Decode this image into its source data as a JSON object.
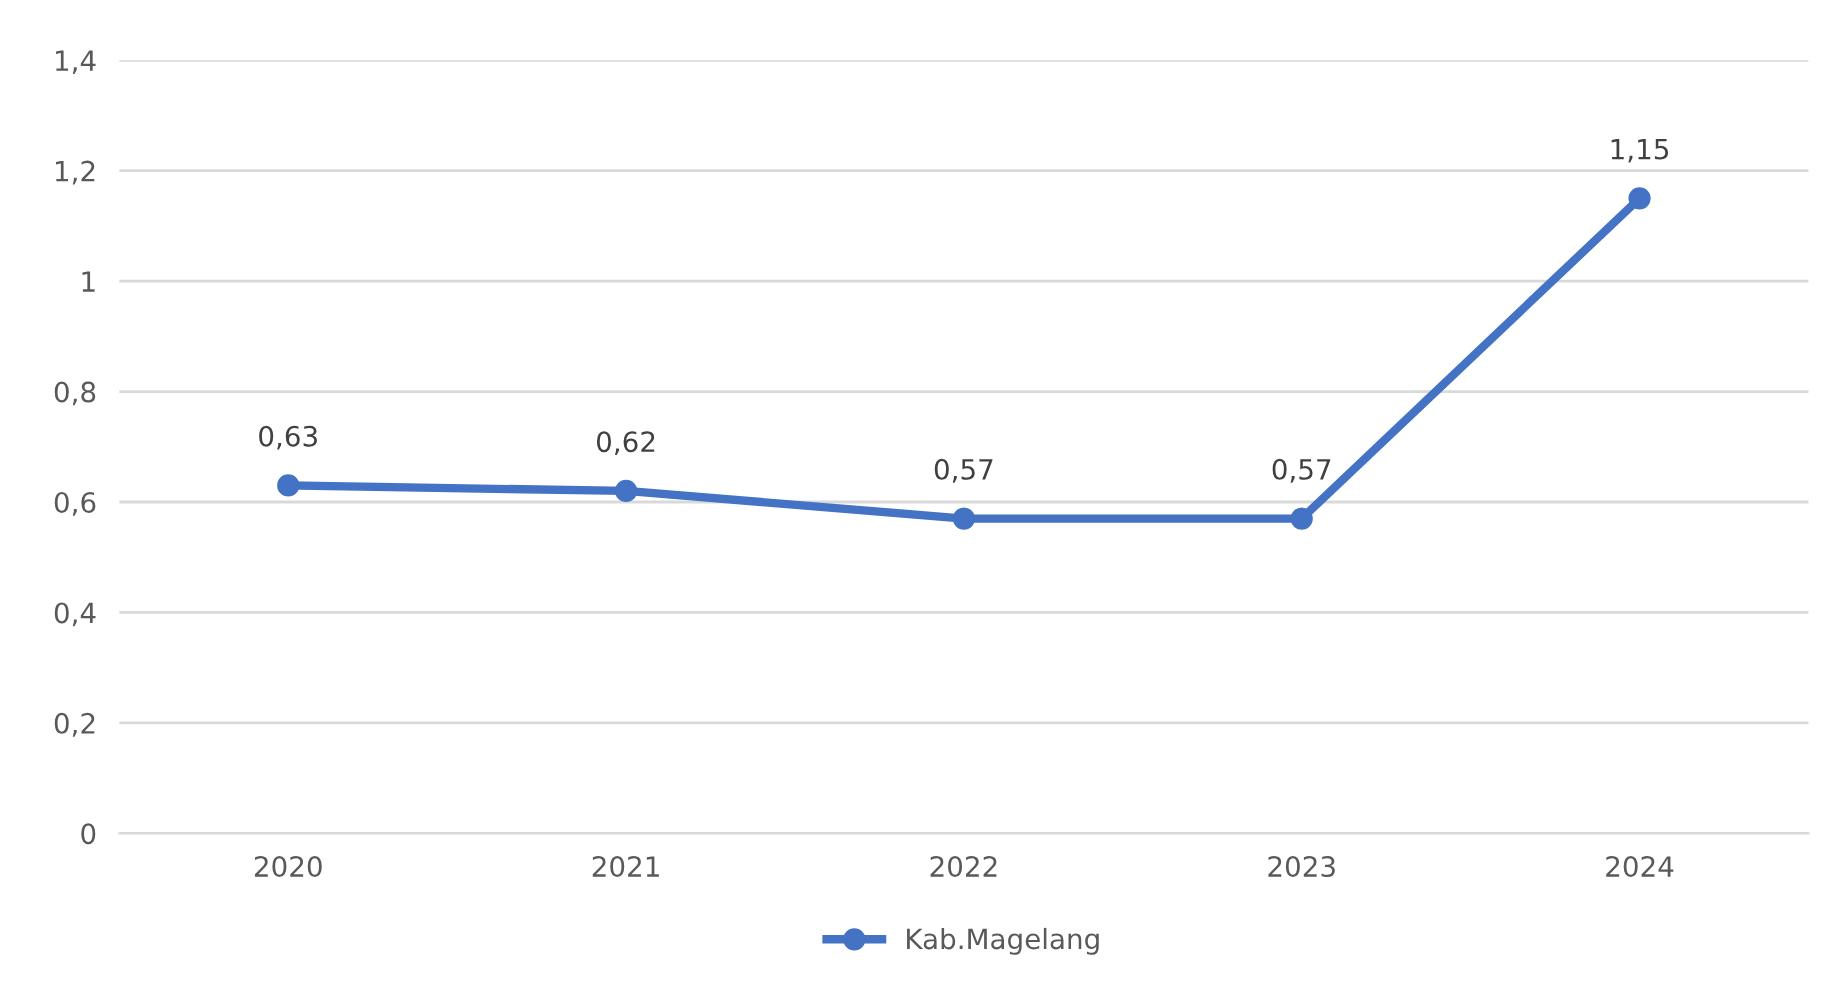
{
  "chart_data": {
    "type": "line",
    "categories": [
      "2020",
      "2021",
      "2022",
      "2023",
      "2024"
    ],
    "series": [
      {
        "name": "Kab.Magelang",
        "color": "#4472c4",
        "values": [
          0.63,
          0.62,
          0.57,
          0.57,
          1.15
        ],
        "value_labels": [
          "0,63",
          "0,62",
          "0,57",
          "0,57",
          "1,15"
        ]
      }
    ],
    "ylim": [
      0,
      1.4
    ],
    "yticks": [
      0,
      {
        "value": 0.2,
        "label": "0,2"
      },
      {
        "value": 0.4,
        "label": "0,4"
      },
      {
        "value": 0.6,
        "label": "0,6"
      },
      {
        "value": 0.8,
        "label": "0,8"
      },
      1,
      {
        "value": 1.2,
        "label": "1,2"
      },
      {
        "value": 1.4,
        "label": "1,4"
      }
    ],
    "grid": "y",
    "legend": "bottom",
    "marker": "circle",
    "line_style": "solid"
  }
}
